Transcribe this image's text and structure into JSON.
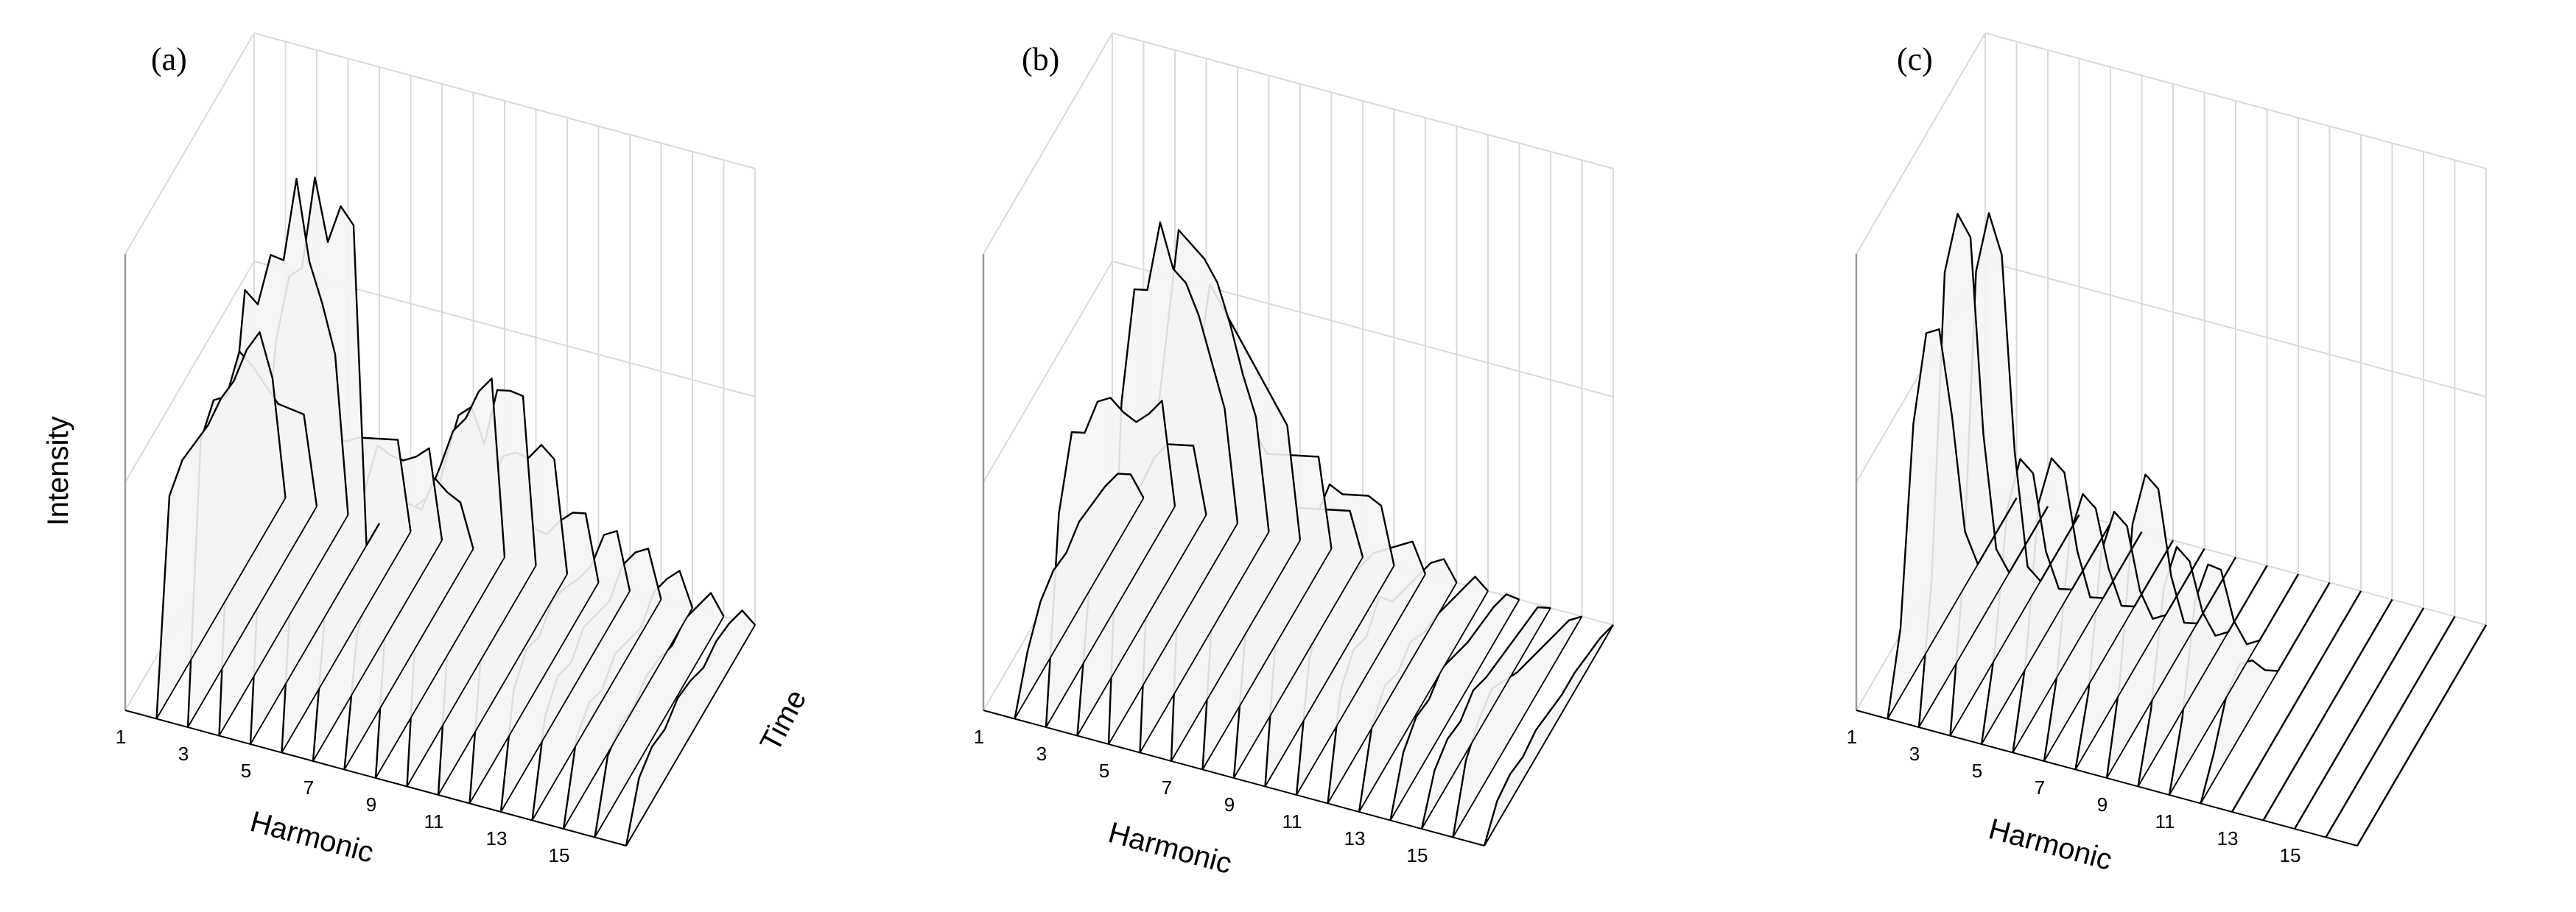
{
  "figure": {
    "axis_titles": {
      "z": "Intensity",
      "x": "Harmonic",
      "y": "Time"
    }
  },
  "chart_data": [
    {
      "type": "area",
      "label": "(a)",
      "x_ticks": [
        "1",
        "3",
        "5",
        "7",
        "9",
        "11",
        "13",
        "15"
      ],
      "xlabel": "Harmonic",
      "ylabel": "Time",
      "zlabel": "Intensity",
      "grid": true,
      "series": [
        {
          "harmonic": 2,
          "values": [
            0.0,
            0.44,
            0.47,
            0.46,
            0.45,
            0.46,
            0.45,
            0.47,
            0.46,
            0.31,
            0.0
          ]
        },
        {
          "harmonic": 3,
          "values": [
            0.0,
            0.58,
            0.62,
            0.58,
            0.63,
            0.55,
            0.46,
            0.37,
            0.31,
            0.25,
            0.0
          ]
        },
        {
          "harmonic": 4,
          "values": [
            0.0,
            0.62,
            0.88,
            0.8,
            0.86,
            0.8,
            0.93,
            0.7,
            0.56,
            0.4,
            0.0
          ]
        },
        {
          "harmonic": 5,
          "values": [
            0.0,
            0.53,
            0.79,
            0.88,
            0.85,
            1.0,
            0.81,
            0.84,
            0.75,
            0.0,
            0.0
          ]
        },
        {
          "harmonic": 6,
          "values": [
            0.0,
            0.45,
            0.65,
            0.6,
            0.5,
            0.44,
            0.4,
            0.35,
            0.3,
            0.25,
            0.0
          ]
        },
        {
          "harmonic": 7,
          "values": [
            0.0,
            0.3,
            0.36,
            0.33,
            0.4,
            0.45,
            0.38,
            0.32,
            0.28,
            0.25,
            0.0
          ]
        },
        {
          "harmonic": 8,
          "values": [
            0.0,
            0.25,
            0.3,
            0.35,
            0.4,
            0.34,
            0.28,
            0.3,
            0.22,
            0.15,
            0.0
          ]
        },
        {
          "harmonic": 9,
          "values": [
            0.0,
            0.39,
            0.47,
            0.45,
            0.42,
            0.44,
            0.47,
            0.45,
            0.46,
            0.44,
            0.0
          ]
        },
        {
          "harmonic": 10,
          "values": [
            0.0,
            0.46,
            0.51,
            0.57,
            0.62,
            0.59,
            0.46,
            0.53,
            0.48,
            0.42,
            0.0
          ]
        },
        {
          "harmonic": 11,
          "values": [
            0.0,
            0.4,
            0.45,
            0.42,
            0.48,
            0.5,
            0.46,
            0.4,
            0.38,
            0.3,
            0.0
          ]
        },
        {
          "harmonic": 12,
          "values": [
            0.0,
            0.32,
            0.4,
            0.38,
            0.42,
            0.36,
            0.3,
            0.28,
            0.25,
            0.2,
            0.0
          ]
        },
        {
          "harmonic": 13,
          "values": [
            0.0,
            0.22,
            0.26,
            0.24,
            0.27,
            0.25,
            0.22,
            0.2,
            0.22,
            0.18,
            0.0
          ]
        },
        {
          "harmonic": 14,
          "values": [
            0.0,
            0.18,
            0.22,
            0.2,
            0.23,
            0.21,
            0.19,
            0.22,
            0.2,
            0.16,
            0.0
          ]
        },
        {
          "harmonic": 15,
          "values": [
            0.0,
            0.15,
            0.18,
            0.16,
            0.19,
            0.17,
            0.15,
            0.18,
            0.16,
            0.13,
            0.0
          ]
        },
        {
          "harmonic": 16,
          "values": [
            0.0,
            0.13,
            0.15,
            0.14,
            0.16,
            0.15,
            0.13,
            0.14,
            0.12,
            0.1,
            0.0
          ]
        },
        {
          "harmonic": 17,
          "values": [
            0.0,
            0.1,
            0.12,
            0.11,
            0.13,
            0.12,
            0.1,
            0.11,
            0.1,
            0.08,
            0.0
          ]
        }
      ]
    },
    {
      "type": "area",
      "label": "(b)",
      "x_ticks": [
        "1",
        "3",
        "5",
        "7",
        "9",
        "11",
        "13",
        "15"
      ],
      "xlabel": "Harmonic",
      "ylabel": "Time",
      "zlabel": "Intensity",
      "grid": true,
      "series": [
        {
          "harmonic": 2,
          "values": [
            0.0,
            0.1,
            0.16,
            0.18,
            0.17,
            0.19,
            0.18,
            0.17,
            0.15,
            0.1,
            0.0
          ]
        },
        {
          "harmonic": 3,
          "values": [
            0.0,
            0.42,
            0.55,
            0.5,
            0.52,
            0.48,
            0.4,
            0.33,
            0.3,
            0.28,
            0.0
          ]
        },
        {
          "harmonic": 4,
          "values": [
            0.0,
            0.3,
            0.33,
            0.32,
            0.33,
            0.31,
            0.32,
            0.3,
            0.25,
            0.2,
            0.0
          ]
        },
        {
          "harmonic": 5,
          "values": [
            0.0,
            0.7,
            0.9,
            0.85,
            0.95,
            0.8,
            0.72,
            0.6,
            0.45,
            0.3,
            0.0
          ]
        },
        {
          "harmonic": 6,
          "values": [
            0.0,
            0.6,
            0.8,
            1.0,
            0.92,
            0.84,
            0.74,
            0.6,
            0.44,
            0.3,
            0.0
          ]
        },
        {
          "harmonic": 7,
          "values": [
            0.0,
            0.65,
            0.75,
            0.9,
            0.8,
            0.7,
            0.6,
            0.5,
            0.4,
            0.3,
            0.0
          ]
        },
        {
          "harmonic": 8,
          "values": [
            0.0,
            0.4,
            0.52,
            0.6,
            0.55,
            0.45,
            0.4,
            0.35,
            0.3,
            0.25,
            0.0
          ]
        },
        {
          "harmonic": 9,
          "values": [
            0.0,
            0.3,
            0.4,
            0.45,
            0.4,
            0.35,
            0.3,
            0.25,
            0.2,
            0.15,
            0.0
          ]
        },
        {
          "harmonic": 10,
          "values": [
            0.0,
            0.35,
            0.5,
            0.45,
            0.4,
            0.42,
            0.35,
            0.3,
            0.25,
            0.18,
            0.0
          ]
        },
        {
          "harmonic": 11,
          "values": [
            0.0,
            0.25,
            0.32,
            0.3,
            0.28,
            0.26,
            0.24,
            0.2,
            0.16,
            0.12,
            0.0
          ]
        },
        {
          "harmonic": 12,
          "values": [
            0.0,
            0.2,
            0.24,
            0.22,
            0.26,
            0.2,
            0.18,
            0.16,
            0.14,
            0.1,
            0.0
          ]
        },
        {
          "harmonic": 13,
          "values": [
            0.0,
            0.14,
            0.18,
            0.16,
            0.18,
            0.15,
            0.14,
            0.12,
            0.1,
            0.08,
            0.0
          ]
        },
        {
          "harmonic": 14,
          "values": [
            0.0,
            0.1,
            0.13,
            0.12,
            0.14,
            0.12,
            0.1,
            0.09,
            0.08,
            0.06,
            0.0
          ]
        },
        {
          "harmonic": 15,
          "values": [
            0.0,
            0.08,
            0.1,
            0.09,
            0.11,
            0.09,
            0.08,
            0.07,
            0.06,
            0.05,
            0.0
          ]
        },
        {
          "harmonic": 16,
          "values": [
            0.0,
            0.12,
            0.16,
            0.18,
            0.15,
            0.12,
            0.1,
            0.08,
            0.06,
            0.04,
            0.0
          ]
        },
        {
          "harmonic": 17,
          "values": [
            0.0,
            0.05,
            0.06,
            0.05,
            0.06,
            0.05,
            0.04,
            0.04,
            0.03,
            0.02,
            0.0
          ]
        }
      ]
    },
    {
      "type": "area",
      "label": "(c)",
      "x_ticks": [
        "1",
        "3",
        "5",
        "7",
        "9",
        "11",
        "13",
        "15"
      ],
      "xlabel": "Harmonic",
      "ylabel": "Time",
      "zlabel": "Intensity",
      "grid": true,
      "series": [
        {
          "harmonic": 2,
          "values": [
            0.0,
            0.15,
            0.55,
            0.7,
            0.66,
            0.42,
            0.12,
            0.0,
            0.0,
            0.0,
            0.0
          ]
        },
        {
          "harmonic": 3,
          "values": [
            0.0,
            0.28,
            0.9,
            0.98,
            0.88,
            0.4,
            0.1,
            0.0,
            0.0,
            0.0,
            0.0
          ]
        },
        {
          "harmonic": 4,
          "values": [
            0.0,
            0.3,
            0.92,
            1.0,
            0.86,
            0.38,
            0.08,
            0.0,
            0.0,
            0.0,
            0.0
          ]
        },
        {
          "harmonic": 5,
          "values": [
            0.0,
            0.15,
            0.42,
            0.48,
            0.4,
            0.18,
            0.05,
            0.0,
            0.0,
            0.0,
            0.0
          ]
        },
        {
          "harmonic": 6,
          "values": [
            0.0,
            0.15,
            0.45,
            0.5,
            0.42,
            0.2,
            0.05,
            0.0,
            0.0,
            0.0,
            0.0
          ]
        },
        {
          "harmonic": 7,
          "values": [
            0.0,
            0.14,
            0.4,
            0.44,
            0.36,
            0.18,
            0.05,
            0.0,
            0.0,
            0.0,
            0.0
          ]
        },
        {
          "harmonic": 8,
          "values": [
            0.0,
            0.12,
            0.38,
            0.42,
            0.34,
            0.15,
            0.04,
            0.0,
            0.0,
            0.0,
            0.0
          ]
        },
        {
          "harmonic": 9,
          "values": [
            0.0,
            0.16,
            0.46,
            0.52,
            0.44,
            0.2,
            0.05,
            0.0,
            0.0,
            0.0,
            0.0
          ]
        },
        {
          "harmonic": 10,
          "values": [
            0.0,
            0.12,
            0.34,
            0.38,
            0.3,
            0.14,
            0.04,
            0.0,
            0.0,
            0.0,
            0.0
          ]
        },
        {
          "harmonic": 11,
          "values": [
            0.0,
            0.12,
            0.33,
            0.36,
            0.3,
            0.14,
            0.04,
            0.0,
            0.0,
            0.0,
            0.0
          ]
        },
        {
          "harmonic": 12,
          "values": [
            0.0,
            0.06,
            0.14,
            0.16,
            0.12,
            0.05,
            0.0,
            0.0,
            0.0,
            0.0,
            0.0
          ]
        },
        {
          "harmonic": 13,
          "values": [
            0.0,
            0.0,
            0.0,
            0.0,
            0.0,
            0.0,
            0.0,
            0.0,
            0.0,
            0.0,
            0.0
          ]
        },
        {
          "harmonic": 14,
          "values": [
            0.0,
            0.0,
            0.0,
            0.0,
            0.0,
            0.0,
            0.0,
            0.0,
            0.0,
            0.0,
            0.0
          ]
        },
        {
          "harmonic": 15,
          "values": [
            0.0,
            0.0,
            0.0,
            0.0,
            0.0,
            0.0,
            0.0,
            0.0,
            0.0,
            0.0,
            0.0
          ]
        },
        {
          "harmonic": 16,
          "values": [
            0.0,
            0.0,
            0.0,
            0.0,
            0.0,
            0.0,
            0.0,
            0.0,
            0.0,
            0.0,
            0.0
          ]
        },
        {
          "harmonic": 17,
          "values": [
            0.0,
            0.0,
            0.0,
            0.0,
            0.0,
            0.0,
            0.0,
            0.0,
            0.0,
            0.0,
            0.0
          ]
        }
      ]
    }
  ]
}
